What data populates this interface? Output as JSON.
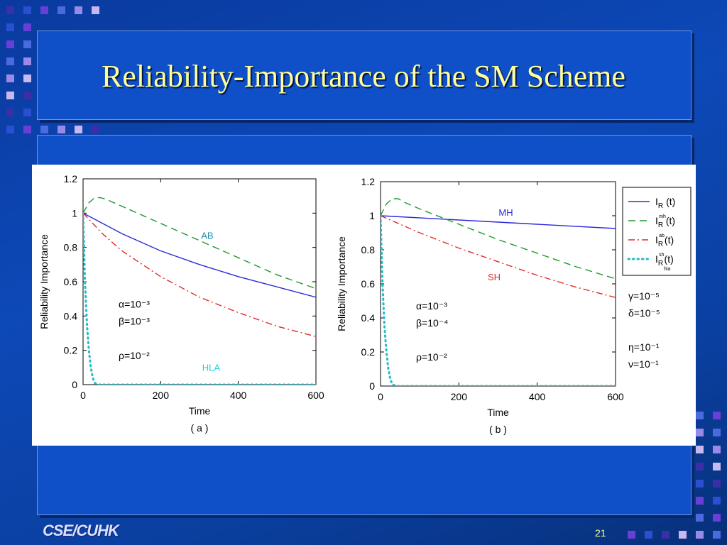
{
  "slide": {
    "title": "Reliability-Importance of the SM Scheme",
    "footer_logo": "CSE/CUHK",
    "page_number": "21"
  },
  "colors": {
    "title_text": "#ffff99",
    "panel_blue": "#0f4fc7",
    "series_colors": [
      "#2b2bd9",
      "#1e9a2b",
      "#e02a2a",
      "#22bcc8"
    ]
  },
  "chart_data": [
    {
      "type": "line",
      "caption": "( a )",
      "xlabel": "Time",
      "ylabel": "Reliability Importance",
      "xlim": [
        0,
        600
      ],
      "ylim": [
        0,
        1.2
      ],
      "xticks": [
        "0",
        "200",
        "400",
        "600"
      ],
      "yticks": [
        "0",
        "0.2",
        "0.4",
        "0.6",
        "0.8",
        "1",
        "1.2"
      ],
      "grid": false,
      "annotations": [
        {
          "text": "AB",
          "color": "#1e8fb0"
        },
        {
          "text": "HLA",
          "color": "#22d0e0"
        }
      ],
      "params": [
        "α=10⁻³",
        "β=10⁻³",
        "ρ=10⁻²"
      ],
      "series": [
        {
          "style": "solid",
          "color": "#2b2bd9",
          "x": [
            0,
            100,
            200,
            300,
            400,
            500,
            600
          ],
          "y": [
            1.0,
            0.88,
            0.78,
            0.7,
            0.63,
            0.57,
            0.51
          ]
        },
        {
          "style": "dashed",
          "color": "#1e9a2b",
          "x": [
            0,
            15,
            30,
            45,
            60,
            100,
            200,
            300,
            400,
            500,
            600
          ],
          "y": [
            1.0,
            1.06,
            1.09,
            1.09,
            1.08,
            1.04,
            0.94,
            0.84,
            0.74,
            0.64,
            0.56
          ]
        },
        {
          "style": "dashdot",
          "color": "#e02a2a",
          "x": [
            0,
            50,
            100,
            200,
            300,
            400,
            500,
            600
          ],
          "y": [
            1.0,
            0.88,
            0.78,
            0.63,
            0.51,
            0.42,
            0.34,
            0.28
          ]
        },
        {
          "style": "dotted",
          "color": "#22bcc8",
          "x": [
            0,
            5,
            10,
            15,
            20,
            25,
            30,
            40,
            50,
            100,
            200,
            300,
            400,
            500,
            600
          ],
          "y": [
            1.0,
            0.6,
            0.35,
            0.2,
            0.1,
            0.04,
            0.01,
            0,
            0,
            0,
            0,
            0,
            0,
            0,
            0
          ]
        }
      ]
    },
    {
      "type": "line",
      "caption": "( b )",
      "xlabel": "Time",
      "ylabel": "Reliability Importance",
      "xlim": [
        0,
        600
      ],
      "ylim": [
        0,
        1.2
      ],
      "xticks": [
        "0",
        "200",
        "400",
        "600"
      ],
      "yticks": [
        "0",
        "0.2",
        "0.4",
        "0.6",
        "0.8",
        "1",
        "1.2"
      ],
      "grid": false,
      "annotations": [
        {
          "text": "MH",
          "color": "#2b2bd9"
        },
        {
          "text": "SH",
          "color": "#e02a2a"
        }
      ],
      "params": [
        "α=10⁻³",
        "β=10⁻⁴",
        "ρ=10⁻²"
      ],
      "series": [
        {
          "style": "solid",
          "color": "#2b2bd9",
          "x": [
            0,
            200,
            400,
            600
          ],
          "y": [
            1.0,
            0.975,
            0.95,
            0.925
          ]
        },
        {
          "style": "dashed",
          "color": "#1e9a2b",
          "x": [
            0,
            15,
            30,
            45,
            60,
            100,
            200,
            300,
            400,
            500,
            600
          ],
          "y": [
            1.0,
            1.07,
            1.1,
            1.1,
            1.08,
            1.04,
            0.95,
            0.86,
            0.78,
            0.7,
            0.63
          ]
        },
        {
          "style": "dashdot",
          "color": "#e02a2a",
          "x": [
            0,
            50,
            100,
            200,
            300,
            400,
            500,
            600
          ],
          "y": [
            1.0,
            0.95,
            0.9,
            0.81,
            0.73,
            0.65,
            0.58,
            0.52
          ]
        },
        {
          "style": "dotted",
          "color": "#22bcc8",
          "x": [
            0,
            5,
            10,
            15,
            20,
            25,
            30,
            40,
            50,
            100,
            200,
            300,
            400,
            500,
            600
          ],
          "y": [
            1.0,
            0.6,
            0.35,
            0.2,
            0.1,
            0.04,
            0.01,
            0,
            0,
            0,
            0,
            0,
            0,
            0,
            0
          ]
        }
      ]
    }
  ],
  "legend": {
    "placement": "right",
    "entries": [
      {
        "main": "I",
        "sub": "R",
        "sup": "",
        "arg": "(t)",
        "style": "solid",
        "color": "#2b2bd9"
      },
      {
        "main": "I",
        "sub": "R",
        "sup": "mh",
        "arg": "(t)",
        "style": "dashed",
        "color": "#1e9a2b"
      },
      {
        "main": "I",
        "sub": "R",
        "sup": "ab",
        "arg": "(t)",
        "style": "dashdot",
        "color": "#e02a2a"
      },
      {
        "main": "I",
        "sub": "R",
        "sup": "sh",
        "arg": "(t)",
        "style": "dotted",
        "color": "#22bcc8",
        "sub2": "hla"
      }
    ]
  },
  "extra_params": [
    "γ=10⁻⁵",
    "δ=10⁻⁵",
    "η=10⁻¹",
    "ν=10⁻¹"
  ]
}
